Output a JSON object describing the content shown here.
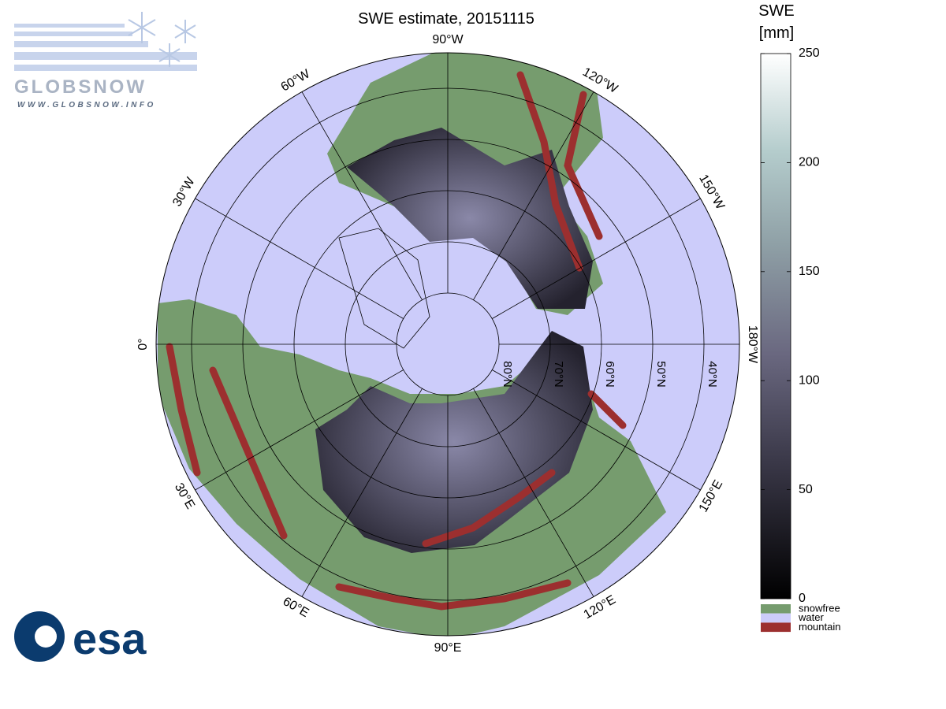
{
  "header": {
    "title": "SWE estimate, 20151115"
  },
  "map": {
    "meridian_labels": [
      "90°W",
      "120°W",
      "150°W",
      "180°W",
      "150°E",
      "120°E",
      "90°E",
      "60°E",
      "30°E",
      "0°",
      "30°W",
      "60°W"
    ],
    "parallels": [
      {
        "value": 80,
        "label": "80°N"
      },
      {
        "value": 70,
        "label": "70°N"
      },
      {
        "value": 60,
        "label": "60°N"
      },
      {
        "value": 50,
        "label": "50°N"
      },
      {
        "value": 40,
        "label": "40°N"
      }
    ]
  },
  "colorbar": {
    "title": [
      "SWE",
      "[mm]"
    ],
    "lim": [
      0,
      250
    ],
    "ticks": [
      0,
      50,
      100,
      150,
      200,
      250
    ]
  },
  "legend": [
    {
      "name": "snowfree",
      "color": "#769c6e"
    },
    {
      "name": "water",
      "color": "#ccccfa"
    },
    {
      "name": "mountain",
      "color": "#9c2f2f"
    }
  ],
  "logos": {
    "globsnow": "GLOBSNOW",
    "url": "WWW.GLOBSNOW.INFO",
    "esa": "esa"
  }
}
